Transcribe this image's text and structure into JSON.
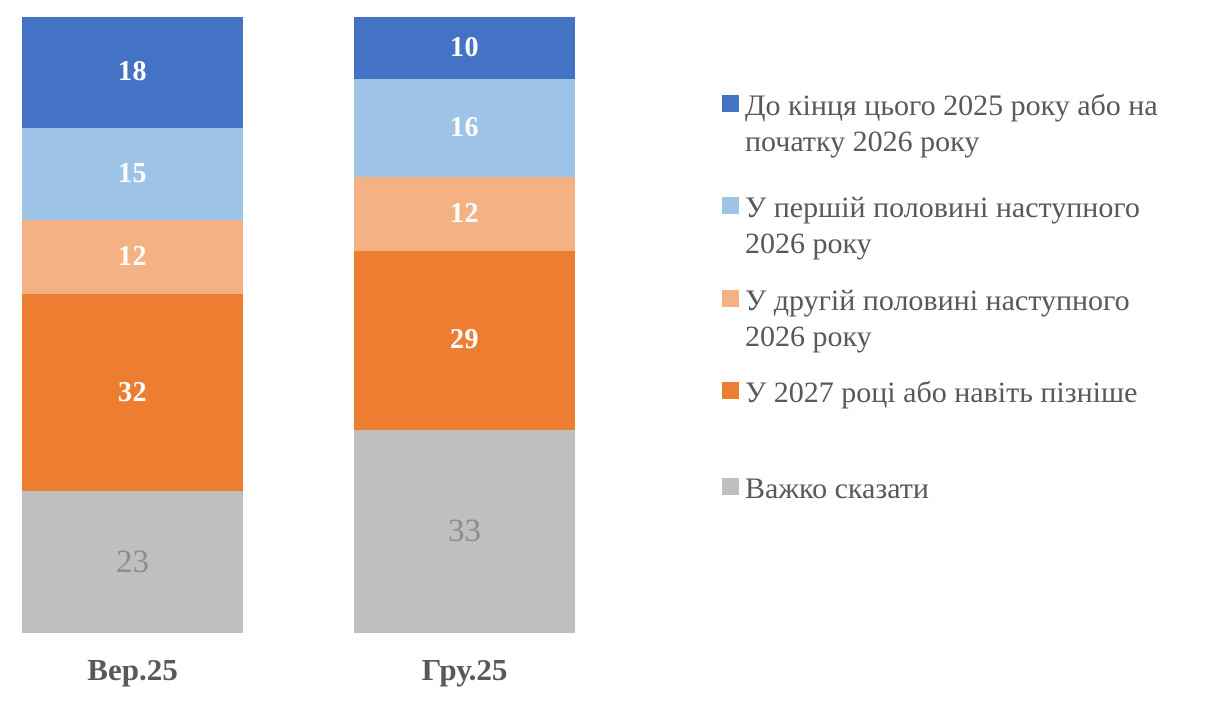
{
  "chart_data": {
    "type": "bar",
    "stacked": true,
    "orientation": "vertical",
    "total": 100,
    "background": "#FFFFFF",
    "legend_position": "right",
    "grid": false,
    "axis_label_color": "#595959",
    "legend_text_color": "#595959",
    "categories": [
      "Вер.25",
      "Гру.25"
    ],
    "series": [
      {
        "name": "До кінця цього 2025 року або на\nпочатку 2026 року",
        "color": "#4472C4",
        "label_color": "#FFFFFF",
        "muted_label": false,
        "values": [
          18,
          10
        ]
      },
      {
        "name": "У першій половині наступного\n2026 року",
        "color": "#9DC3E6",
        "label_color": "#FFFFFF",
        "muted_label": false,
        "values": [
          15,
          16
        ]
      },
      {
        "name": "У другій половині наступного\n2026 року",
        "color": "#F4B183",
        "label_color": "#FFFFFF",
        "muted_label": false,
        "values": [
          12,
          12
        ]
      },
      {
        "name": "У 2027 році або навіть пізніше",
        "color": "#ED7D31",
        "label_color": "#FFFFFF",
        "muted_label": false,
        "values": [
          32,
          29
        ]
      },
      {
        "name": "Важко сказати",
        "color": "#BFBFBF",
        "label_color": "#8C8C8C",
        "muted_label": true,
        "values": [
          23,
          33
        ]
      }
    ]
  }
}
